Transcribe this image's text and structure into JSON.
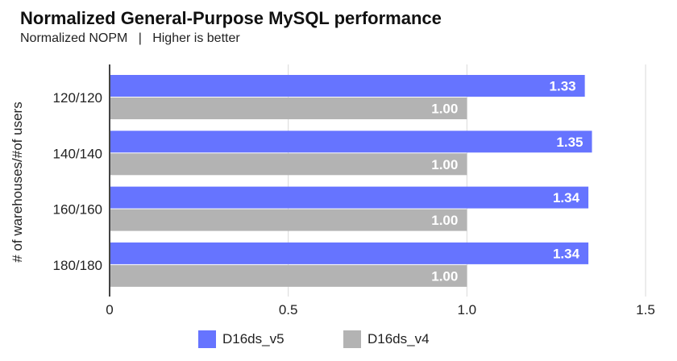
{
  "chart_data": {
    "type": "bar",
    "orientation": "horizontal",
    "title": "Normalized General-Purpose MySQL performance",
    "subtitle": "Normalized NOPM   |   Higher is better",
    "ylabel": "# of warehouses/#of users",
    "xlabel": "",
    "categories": [
      "120/120",
      "140/140",
      "160/160",
      "180/180"
    ],
    "series": [
      {
        "name": "D16ds_v5",
        "color": "#6674ff",
        "values": [
          1.33,
          1.35,
          1.34,
          1.34
        ],
        "labels": [
          "1.33",
          "1.35",
          "1.34",
          "1.34"
        ]
      },
      {
        "name": "D16ds_v4",
        "color": "#b3b3b3",
        "values": [
          1.0,
          1.0,
          1.0,
          1.0
        ],
        "labels": [
          "1.00",
          "1.00",
          "1.00",
          "1.00"
        ]
      }
    ],
    "xlim": [
      0,
      1.5
    ],
    "xticks": [
      0,
      0.5,
      1.0,
      1.5
    ],
    "xtick_labels": [
      "0",
      "0.5",
      "1.0",
      "1.5"
    ],
    "grid": "vertical",
    "legend_position": "bottom"
  }
}
